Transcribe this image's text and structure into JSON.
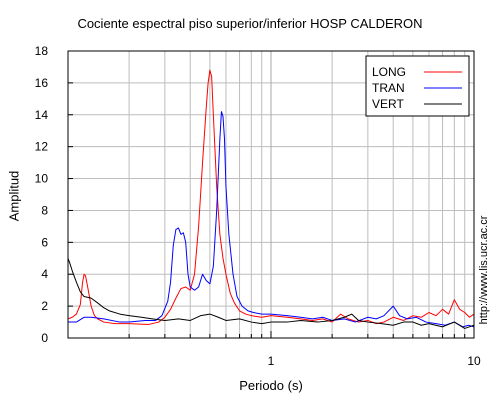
{
  "chart_data": {
    "type": "line",
    "title": "Cociente espectral piso superior/inferior  HOSP CALDERON",
    "xlabel": "Periodo (s)",
    "ylabel": "Amplitud",
    "x_scale": "log",
    "xlim": [
      0.1,
      10
    ],
    "ylim": [
      0,
      18
    ],
    "y_ticks": [
      "0",
      "2",
      "4",
      "6",
      "8",
      "10",
      "12",
      "14",
      "16",
      "18"
    ],
    "x_ticks": [
      {
        "value": 1,
        "label": "1"
      },
      {
        "value": 10,
        "label": "10"
      }
    ],
    "grid": true,
    "legend_position": "top-right",
    "series": [
      {
        "name": "LONG",
        "color": "#ff0000",
        "points": [
          [
            0.1,
            1.2
          ],
          [
            0.105,
            1.3
          ],
          [
            0.11,
            1.5
          ],
          [
            0.115,
            2.1
          ],
          [
            0.118,
            3.5
          ],
          [
            0.12,
            4.0
          ],
          [
            0.122,
            3.9
          ],
          [
            0.125,
            3.2
          ],
          [
            0.13,
            2.0
          ],
          [
            0.135,
            1.4
          ],
          [
            0.14,
            1.2
          ],
          [
            0.15,
            1.0
          ],
          [
            0.17,
            0.9
          ],
          [
            0.2,
            0.9
          ],
          [
            0.25,
            0.85
          ],
          [
            0.28,
            1.0
          ],
          [
            0.3,
            1.3
          ],
          [
            0.32,
            1.8
          ],
          [
            0.34,
            2.5
          ],
          [
            0.36,
            3.1
          ],
          [
            0.38,
            3.2
          ],
          [
            0.4,
            3.0
          ],
          [
            0.42,
            4.0
          ],
          [
            0.44,
            7.0
          ],
          [
            0.46,
            11.0
          ],
          [
            0.48,
            14.5
          ],
          [
            0.49,
            16.0
          ],
          [
            0.5,
            16.8
          ],
          [
            0.51,
            16.4
          ],
          [
            0.52,
            14.0
          ],
          [
            0.54,
            9.5
          ],
          [
            0.56,
            6.5
          ],
          [
            0.58,
            5.0
          ],
          [
            0.6,
            4.0
          ],
          [
            0.63,
            2.8
          ],
          [
            0.66,
            2.2
          ],
          [
            0.7,
            1.7
          ],
          [
            0.75,
            1.5
          ],
          [
            0.8,
            1.4
          ],
          [
            0.9,
            1.3
          ],
          [
            1.0,
            1.4
          ],
          [
            1.2,
            1.3
          ],
          [
            1.4,
            1.2
          ],
          [
            1.6,
            1.1
          ],
          [
            1.8,
            1.2
          ],
          [
            2.0,
            1.0
          ],
          [
            2.2,
            1.5
          ],
          [
            2.4,
            1.2
          ],
          [
            2.7,
            1.0
          ],
          [
            3.0,
            1.1
          ],
          [
            3.3,
            0.9
          ],
          [
            3.6,
            1.0
          ],
          [
            4.0,
            1.3
          ],
          [
            4.5,
            1.1
          ],
          [
            5.0,
            1.4
          ],
          [
            5.5,
            1.3
          ],
          [
            6.0,
            1.6
          ],
          [
            6.5,
            1.4
          ],
          [
            7.0,
            1.8
          ],
          [
            7.5,
            1.5
          ],
          [
            8.0,
            2.4
          ],
          [
            8.5,
            1.8
          ],
          [
            9.0,
            1.6
          ],
          [
            9.5,
            1.3
          ],
          [
            10.0,
            1.5
          ]
        ]
      },
      {
        "name": "TRAN",
        "color": "#0000ff",
        "points": [
          [
            0.1,
            1.0
          ],
          [
            0.11,
            1.0
          ],
          [
            0.12,
            1.3
          ],
          [
            0.13,
            1.3
          ],
          [
            0.15,
            1.2
          ],
          [
            0.18,
            1.0
          ],
          [
            0.2,
            1.0
          ],
          [
            0.24,
            1.1
          ],
          [
            0.27,
            1.1
          ],
          [
            0.29,
            1.4
          ],
          [
            0.31,
            2.3
          ],
          [
            0.32,
            3.5
          ],
          [
            0.33,
            5.8
          ],
          [
            0.34,
            6.8
          ],
          [
            0.35,
            6.9
          ],
          [
            0.36,
            6.5
          ],
          [
            0.37,
            6.6
          ],
          [
            0.38,
            6.0
          ],
          [
            0.39,
            4.0
          ],
          [
            0.4,
            3.2
          ],
          [
            0.42,
            3.0
          ],
          [
            0.44,
            3.2
          ],
          [
            0.46,
            4.0
          ],
          [
            0.48,
            3.6
          ],
          [
            0.5,
            3.4
          ],
          [
            0.52,
            4.5
          ],
          [
            0.54,
            8.0
          ],
          [
            0.56,
            12.5
          ],
          [
            0.57,
            14.2
          ],
          [
            0.58,
            13.9
          ],
          [
            0.59,
            12.5
          ],
          [
            0.6,
            9.5
          ],
          [
            0.62,
            6.5
          ],
          [
            0.65,
            4.0
          ],
          [
            0.68,
            2.6
          ],
          [
            0.72,
            2.0
          ],
          [
            0.77,
            1.7
          ],
          [
            0.82,
            1.6
          ],
          [
            0.9,
            1.5
          ],
          [
            1.0,
            1.5
          ],
          [
            1.2,
            1.4
          ],
          [
            1.4,
            1.3
          ],
          [
            1.6,
            1.2
          ],
          [
            1.8,
            1.3
          ],
          [
            2.0,
            1.1
          ],
          [
            2.3,
            1.2
          ],
          [
            2.6,
            1.0
          ],
          [
            3.0,
            1.3
          ],
          [
            3.3,
            1.2
          ],
          [
            3.6,
            1.4
          ],
          [
            4.0,
            2.0
          ],
          [
            4.3,
            1.4
          ],
          [
            4.7,
            1.2
          ],
          [
            5.2,
            1.3
          ],
          [
            5.8,
            1.0
          ],
          [
            6.5,
            0.9
          ],
          [
            7.2,
            0.8
          ],
          [
            8.0,
            1.0
          ],
          [
            8.8,
            0.7
          ],
          [
            9.4,
            0.8
          ],
          [
            10.0,
            0.7
          ]
        ]
      },
      {
        "name": "VERT",
        "color": "#000000",
        "points": [
          [
            0.1,
            5.0
          ],
          [
            0.102,
            4.7
          ],
          [
            0.105,
            4.2
          ],
          [
            0.11,
            3.5
          ],
          [
            0.115,
            2.9
          ],
          [
            0.12,
            2.6
          ],
          [
            0.13,
            2.5
          ],
          [
            0.14,
            2.2
          ],
          [
            0.15,
            1.9
          ],
          [
            0.16,
            1.7
          ],
          [
            0.18,
            1.5
          ],
          [
            0.2,
            1.4
          ],
          [
            0.23,
            1.3
          ],
          [
            0.26,
            1.2
          ],
          [
            0.3,
            1.1
          ],
          [
            0.35,
            1.2
          ],
          [
            0.4,
            1.1
          ],
          [
            0.45,
            1.4
          ],
          [
            0.5,
            1.5
          ],
          [
            0.55,
            1.3
          ],
          [
            0.6,
            1.1
          ],
          [
            0.7,
            1.2
          ],
          [
            0.8,
            1.0
          ],
          [
            0.9,
            0.9
          ],
          [
            1.0,
            1.0
          ],
          [
            1.2,
            1.0
          ],
          [
            1.4,
            1.1
          ],
          [
            1.7,
            1.0
          ],
          [
            2.0,
            1.1
          ],
          [
            2.3,
            1.3
          ],
          [
            2.5,
            1.5
          ],
          [
            2.7,
            1.1
          ],
          [
            3.0,
            1.0
          ],
          [
            3.5,
            0.9
          ],
          [
            4.0,
            0.8
          ],
          [
            4.5,
            1.0
          ],
          [
            5.0,
            1.0
          ],
          [
            5.5,
            0.8
          ],
          [
            6.0,
            0.9
          ],
          [
            7.0,
            0.7
          ],
          [
            8.0,
            1.0
          ],
          [
            9.0,
            0.6
          ],
          [
            10.0,
            0.8
          ]
        ]
      }
    ]
  },
  "credit": "http://www.lis.ucr.ac.cr"
}
